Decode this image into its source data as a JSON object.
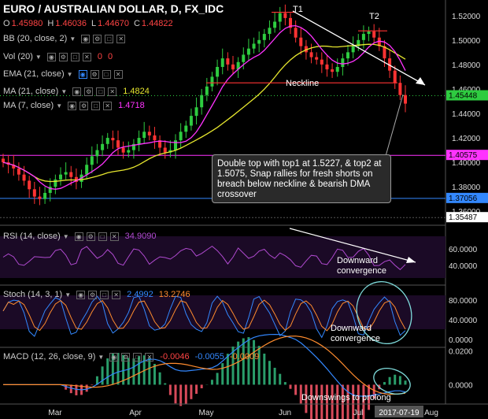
{
  "header": {
    "title": "EURO / AUSTRALIAN DOLLAR, D, FX_IDC",
    "ohlc": [
      {
        "k": "O",
        "v": "1.45980"
      },
      {
        "k": "H",
        "v": "1.46036"
      },
      {
        "k": "L",
        "v": "1.44670"
      },
      {
        "k": "C",
        "v": "1.44822"
      }
    ]
  },
  "indicators": {
    "bb": "BB (20, close, 2)",
    "vol": "Vol (20)",
    "vol_v1": "0",
    "vol_v2": "0",
    "ema": "EMA (21, close)",
    "ma21": "MA (21, close)",
    "ma21_value": "1.4824",
    "ma7": "MA (7, close)",
    "ma7_value": "1.4718"
  },
  "rsi": {
    "label": "RSI (14, close)",
    "value": "34.9090"
  },
  "stoch": {
    "label": "Stoch (14, 3, 1)",
    "k": "2.4992",
    "d": "13.2746"
  },
  "macd": {
    "label": "MACD (12, 26, close, 9)",
    "v1": "-0.0046",
    "v2": "-0.0055",
    "v3": "-0.0009"
  },
  "price_axis": {
    "ticks": [
      "1.52000",
      "1.50000",
      "1.48000",
      "1.46000",
      "1.44000",
      "1.42000",
      "1.40000",
      "1.38000",
      "1.36000"
    ],
    "tags": [
      {
        "label": "1.45448",
        "color": "#2ecc40"
      },
      {
        "label": "1.40575",
        "color": "#ff33ff"
      },
      {
        "label": "1.37056",
        "color": "#3388ff"
      },
      {
        "label": "1.35487",
        "color": "#ffffff"
      }
    ]
  },
  "rsi_axis": [
    "60.0000",
    "40.0000"
  ],
  "stoch_axis": [
    "80.0000",
    "40.0000",
    "0.0000"
  ],
  "macd_axis": [
    "0.0200",
    "0.0000"
  ],
  "time_axis": [
    "Mar",
    "Apr",
    "May",
    "Jun",
    "Jul",
    "2017-07-19",
    "Aug"
  ],
  "annotations": {
    "t1": "T1",
    "t2": "T2",
    "neckline": "Neckline",
    "note": "Double top with top1 at 1.5227, & top2 at 1.5075, Snap rallies for fresh shorts on breach below neckline & bearish DMA crossover",
    "rsi_div": "Downward convergence",
    "stoch_div": "Downward convergence",
    "macd_note": "Downswings to prolong"
  },
  "colors": {
    "bull": "#2ecc40",
    "bear": "#ff3333",
    "ma21": "#e6e62e",
    "ma7": "#ff33ff",
    "panel_bg": "#1b0a26",
    "blue": "#3388ff"
  },
  "chart_data": {
    "type": "candlestick",
    "title": "EURO / AUSTRALIAN DOLLAR, D, FX_IDC",
    "ylim": [
      1.355,
      1.525
    ],
    "x": [
      "Mar",
      "Apr",
      "May",
      "Jun",
      "Jul",
      "2017-07-19",
      "Aug"
    ],
    "series": [
      {
        "name": "MA (21, close)",
        "last": 1.4824
      },
      {
        "name": "MA (7, close)",
        "last": 1.4718
      }
    ],
    "close_path": [
      1.4,
      1.398,
      1.395,
      1.39,
      1.385,
      1.378,
      1.372,
      1.37,
      1.375,
      1.38,
      1.386,
      1.39,
      1.392,
      1.388,
      1.384,
      1.39,
      1.398,
      1.405,
      1.41,
      1.415,
      1.42,
      1.418,
      1.412,
      1.408,
      1.41,
      1.415,
      1.42,
      1.425,
      1.422,
      1.418,
      1.412,
      1.408,
      1.41,
      1.418,
      1.425,
      1.43,
      1.438,
      1.445,
      1.455,
      1.462,
      1.47,
      1.478,
      1.485,
      1.48,
      1.476,
      1.482,
      1.488,
      1.493,
      1.497,
      1.5,
      1.505,
      1.51,
      1.515,
      1.522,
      1.518,
      1.51,
      1.502,
      1.495,
      1.49,
      1.486,
      1.484,
      1.48,
      1.476,
      1.474,
      1.478,
      1.485,
      1.49,
      1.495,
      1.5,
      1.505,
      1.507,
      1.502,
      1.495,
      1.485,
      1.475,
      1.465,
      1.455,
      1.448
    ],
    "key_levels": [
      1.5227,
      1.5075,
      1.465,
      1.40575,
      1.37056
    ]
  }
}
